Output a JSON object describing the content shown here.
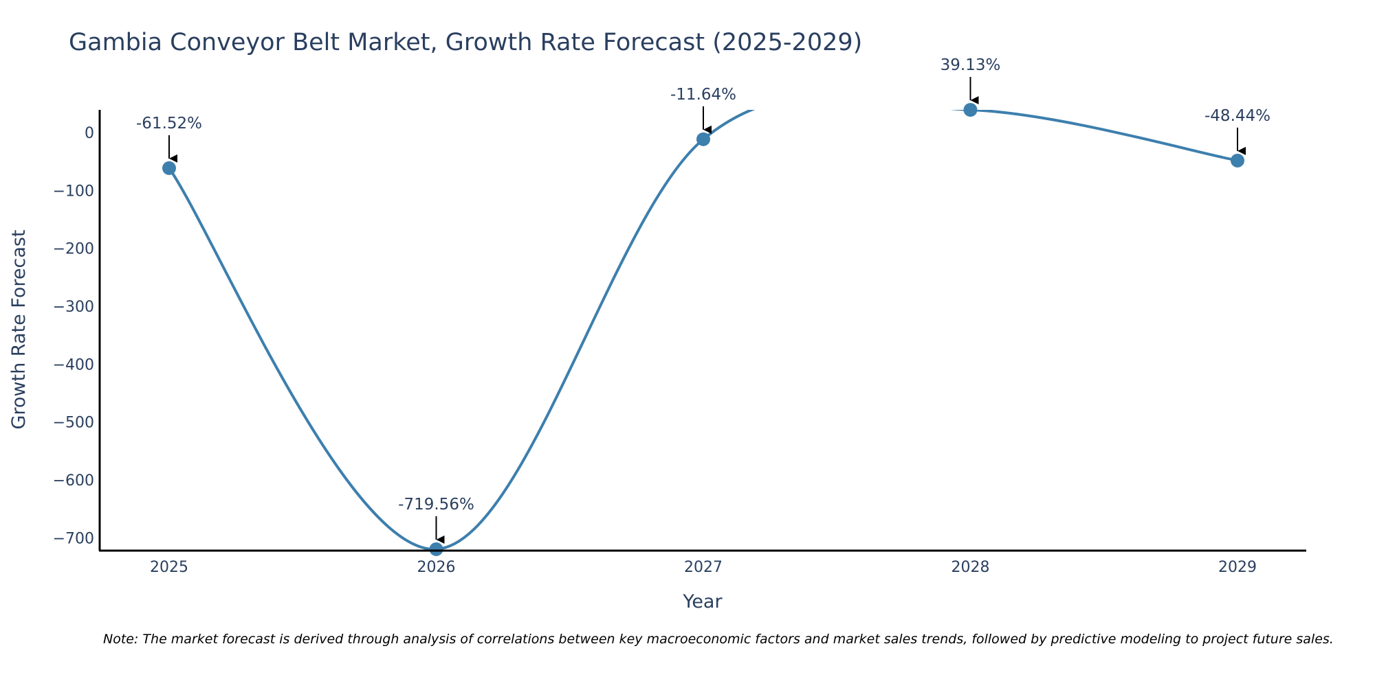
{
  "chart_data": {
    "type": "line",
    "title": "Gambia Conveyor Belt Market, Growth Rate Forecast (2025-2029)",
    "xlabel": "Year",
    "ylabel": "Growth Rate Forecast",
    "x": [
      "2025",
      "2026",
      "2027",
      "2028",
      "2029"
    ],
    "series": [
      {
        "name": "Growth Rate Forecast",
        "values": [
          -61.52,
          -719.56,
          -11.64,
          39.13,
          -48.44
        ],
        "color": "#3d7fad"
      }
    ],
    "data_labels": [
      "-61.52%",
      "-719.56%",
      "-11.64%",
      "39.13%",
      "-48.44%"
    ],
    "y_ticks": [
      0,
      -100,
      -200,
      -300,
      -400,
      -500,
      -600,
      -700
    ],
    "y_tick_labels": [
      "0",
      "−100",
      "−200",
      "−300",
      "−400",
      "−500",
      "−600",
      "−700"
    ],
    "ylim": [
      -722,
      39.13
    ],
    "grid": false,
    "line_shape": "spline"
  },
  "note": "Note: The market forecast is derived through analysis of correlations between key macroeconomic factors and market sales trends, followed by predictive modeling to project future sales."
}
